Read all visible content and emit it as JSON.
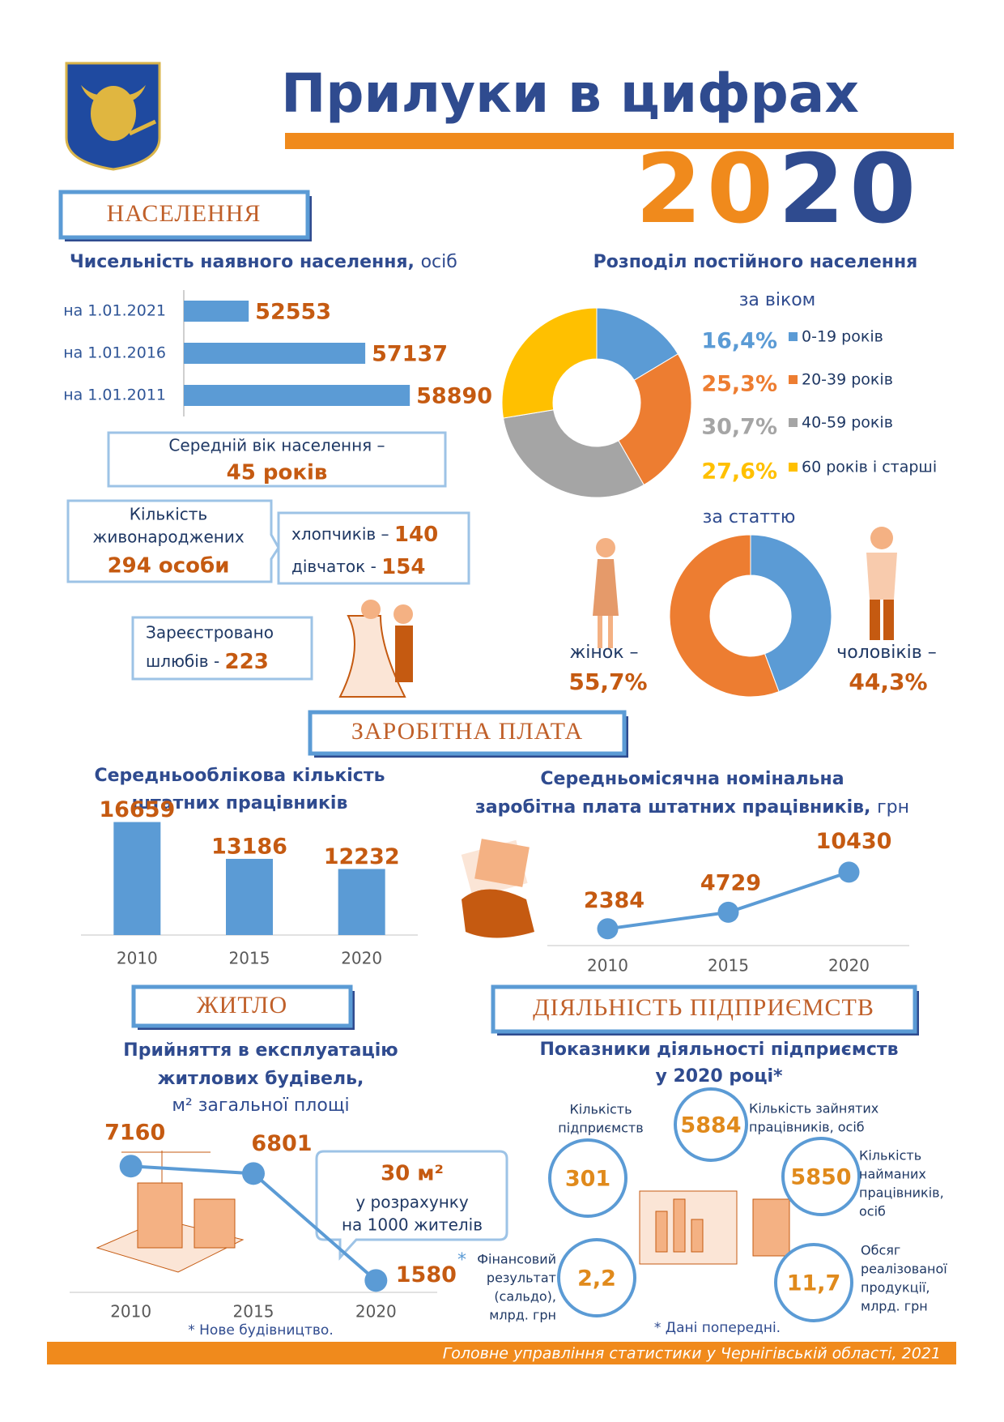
{
  "header": {
    "title": "Прилуки в цифрах",
    "year": "2020"
  },
  "sections": [
    "НАСЕЛЕННЯ",
    "ЗАРОБІТНА ПЛАТА",
    "ЖИТЛО",
    "ДІЯЛЬНІСТЬ ПІДПРИЄМСТВ"
  ],
  "chart_data": [
    {
      "type": "hbar",
      "title": "Чисельність наявного населення,",
      "unit": "осіб",
      "categories": [
        "на 1.01.2021",
        "на 1.01.2016",
        "на 1.01.2011"
      ],
      "values": [
        52553,
        57137,
        58890
      ],
      "color": "#5b9bd5",
      "xlim": [
        50000,
        60000
      ]
    },
    {
      "type": "donut",
      "title": "Розподіл постійного населення",
      "subtitle": "за віком",
      "categories": [
        "0-19 років",
        "20-39 років",
        "40-59 років",
        "60 років і старші"
      ],
      "values": [
        16.4,
        25.3,
        30.7,
        27.6
      ],
      "value_labels": [
        "16,4%",
        "25,3%",
        "30,7%",
        "27,6%"
      ],
      "colors": [
        "#5b9bd5",
        "#ed7d31",
        "#a5a5a5",
        "#ffc000"
      ]
    },
    {
      "type": "donut",
      "subtitle": "за статтю",
      "categories": [
        "чоловіків –",
        "жінок –"
      ],
      "values": [
        44.3,
        55.7
      ],
      "value_labels": [
        "44,3%",
        "55,7%"
      ],
      "colors": [
        "#5b9bd5",
        "#ed7d31"
      ]
    },
    {
      "type": "bar",
      "title": [
        "Середньооблікова кількість",
        "штатних працівників"
      ],
      "categories": [
        "2010",
        "2015",
        "2020"
      ],
      "values": [
        16659,
        13186,
        12232
      ],
      "color": "#5b9bd5",
      "ylim": [
        6000,
        18000
      ]
    },
    {
      "type": "line",
      "title": [
        "Середньомісячна номінальна",
        "заробітна плата штатних працівників,"
      ],
      "unit": "грн",
      "categories": [
        "2010",
        "2015",
        "2020"
      ],
      "values": [
        2384,
        4729,
        10430
      ],
      "color": "#5b9bd5",
      "ylim": [
        0,
        16000
      ]
    },
    {
      "type": "line",
      "title": [
        "Прийняття в експлуатацію",
        "житлових будівель,",
        "м² загальної площі"
      ],
      "categories": [
        "2010",
        "2015",
        "2020"
      ],
      "values": [
        7160,
        6801,
        1580
      ],
      "color": "#5b9bd5",
      "ylim": [
        1000,
        8000
      ],
      "annotation": "*",
      "note": "* Нове будівництво.",
      "callout": [
        "30 м²",
        "у розрахунку",
        "на 1000 жителів"
      ]
    }
  ],
  "population_facts": {
    "median_age": {
      "label": "Середній вік населення –",
      "value": "45 років"
    },
    "births": {
      "label": [
        "Кількість",
        "живонароджених"
      ],
      "value": "294 особи",
      "boys_label": "хлопчиків –",
      "boys": 140,
      "girls_label": "дівчаток -",
      "girls": 154
    },
    "marriages": {
      "label": [
        "Зареєстровано",
        "шлюбів -"
      ],
      "value": 223
    }
  },
  "enterprises": {
    "title": [
      "Показники діяльності підприємств",
      "у 2020 році*"
    ],
    "items": [
      {
        "label": [
          "Кількість",
          "підприємств"
        ],
        "value": "301"
      },
      {
        "label": [
          "Кількість зайнятих",
          "працівників, осіб"
        ],
        "value": "5884"
      },
      {
        "label": [
          "Кількість",
          " найманих",
          "працівників,",
          "осіб"
        ],
        "value": "5850"
      },
      {
        "label": [
          "Фінансовий",
          "результат",
          "(сальдо),",
          "млрд. грн"
        ],
        "value": "2,2"
      },
      {
        "label": [
          "Обсяг",
          "реалізованої",
          "продукції,",
          "млрд.  грн"
        ],
        "value": "11,7"
      }
    ],
    "note": "* Дані  попередні."
  },
  "footer": "Головне управління статистики у Чернігівській області, 2021"
}
